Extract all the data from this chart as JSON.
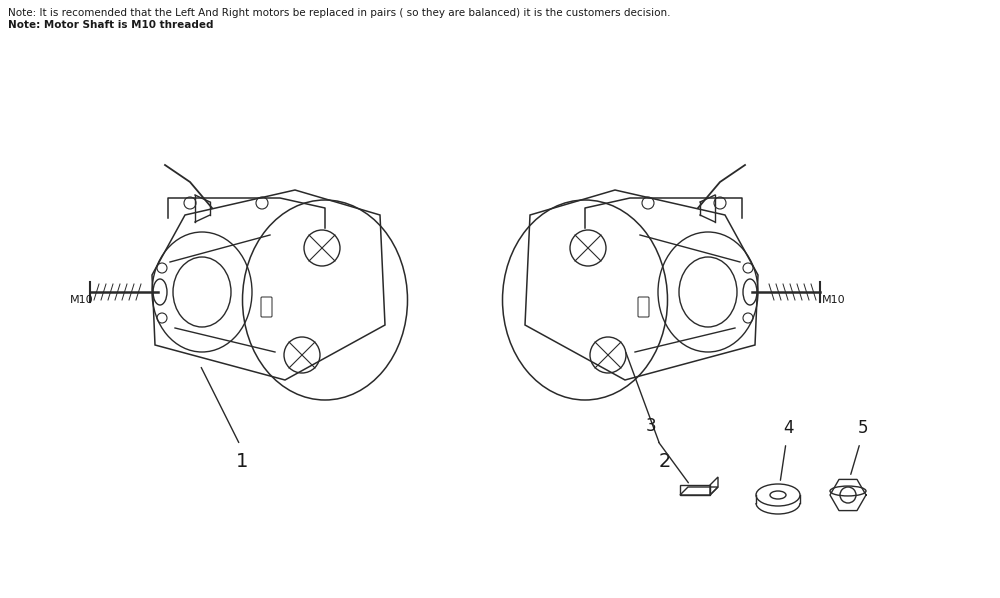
{
  "background_color": "#ffffff",
  "text_color": "#1a1a1a",
  "line_color": "#2a2a2a",
  "note1": "Note: It is recomended that the Left And Right motors be replaced in pairs ( so they are balanced) it is the customers decision.",
  "note2": "Note: Motor Shaft is M10 threaded",
  "label1": "1",
  "label2": "2",
  "label3": "3",
  "label4": "4",
  "label5": "5",
  "m10_left": "M10",
  "m10_right": "M10",
  "figsize": [
    10.0,
    5.98
  ],
  "dpi": 100
}
